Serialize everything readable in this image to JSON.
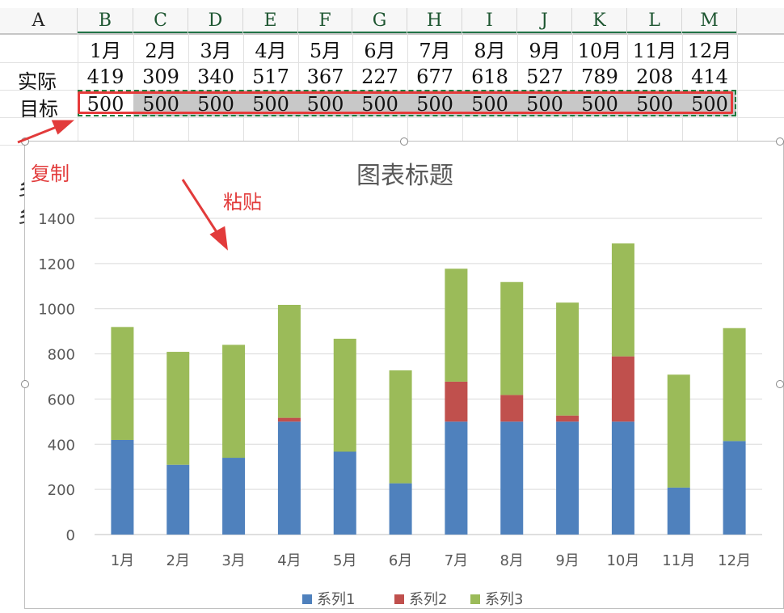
{
  "columns": [
    "A",
    "B",
    "C",
    "D",
    "E",
    "F",
    "G",
    "H",
    "I",
    "J",
    "K",
    "L",
    "M"
  ],
  "months": [
    "1月",
    "2月",
    "3月",
    "4月",
    "5月",
    "6月",
    "7月",
    "8月",
    "9月",
    "10月",
    "11月",
    "12月"
  ],
  "row_actual_label": "实际",
  "row_target_label": "目标",
  "actual": [
    419,
    309,
    340,
    517,
    367,
    227,
    677,
    618,
    527,
    789,
    208,
    414
  ],
  "target": [
    500,
    500,
    500,
    500,
    500,
    500,
    500,
    500,
    500,
    500,
    500,
    500
  ],
  "annotations": {
    "copy": "复制",
    "paste": "粘贴"
  },
  "colors": {
    "series1": "#4f81bd",
    "series2": "#c0504d",
    "series3": "#9bbb59",
    "red_annotation": "#e23b3b"
  },
  "chart_data": {
    "type": "bar",
    "stacked": true,
    "title": "图表标题",
    "categories": [
      "1月",
      "2月",
      "3月",
      "4月",
      "5月",
      "6月",
      "7月",
      "8月",
      "9月",
      "10月",
      "11月",
      "12月"
    ],
    "series": [
      {
        "name": "系列1",
        "values": [
          419,
          309,
          340,
          500,
          367,
          227,
          500,
          500,
          500,
          500,
          208,
          414
        ]
      },
      {
        "name": "系列2",
        "values": [
          0,
          0,
          0,
          17,
          0,
          0,
          177,
          118,
          27,
          289,
          0,
          0
        ]
      },
      {
        "name": "系列3",
        "values": [
          500,
          500,
          500,
          500,
          500,
          500,
          500,
          500,
          500,
          500,
          500,
          500
        ]
      }
    ],
    "ylim": [
      0,
      1400
    ],
    "yticks": [
      0,
      200,
      400,
      600,
      800,
      1000,
      1200,
      1400
    ],
    "grid": true,
    "legend": "bottom"
  }
}
